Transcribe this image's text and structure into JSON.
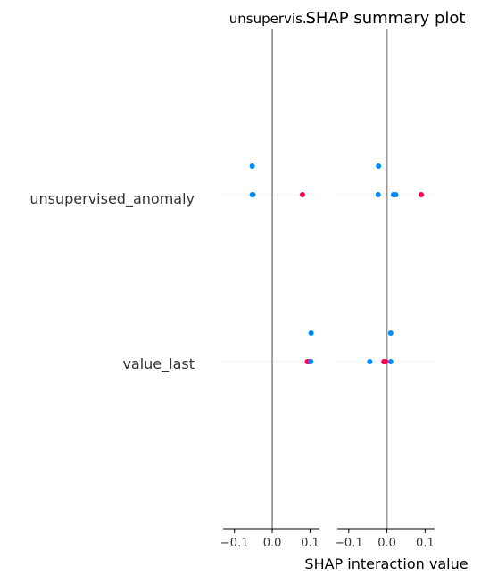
{
  "chart_data": {
    "type": "scatter",
    "title": "SHAP summary plot",
    "xlabel": "SHAP interaction value",
    "features": [
      "unsupervised_anomaly",
      "value_last"
    ],
    "xlim": [
      -0.13,
      0.125
    ],
    "xticks": [
      -0.1,
      0.0,
      0.1
    ],
    "xtick_labels": [
      "−0.1",
      "0.0",
      "0.1"
    ],
    "colors": {
      "low": "#008bfb",
      "high": "#ff0051",
      "zero_line": "#999999",
      "grid": "#cccccc",
      "text": "#333333"
    },
    "panels": [
      {
        "title": "unsupervis...",
        "points": [
          {
            "feature": "unsupervised_anomaly",
            "x": -0.053,
            "jitter": 1,
            "level": "low"
          },
          {
            "feature": "unsupervised_anomaly",
            "x": -0.053,
            "jitter": 0,
            "level": "low"
          },
          {
            "feature": "unsupervised_anomaly",
            "x": -0.051,
            "jitter": 0,
            "level": "low"
          },
          {
            "feature": "unsupervised_anomaly",
            "x": 0.08,
            "jitter": 0,
            "level": "high"
          },
          {
            "feature": "value_last",
            "x": 0.103,
            "jitter": 1,
            "level": "low"
          },
          {
            "feature": "value_last",
            "x": 0.093,
            "jitter": 0,
            "level": "high"
          },
          {
            "feature": "value_last",
            "x": 0.097,
            "jitter": 0,
            "level": "high"
          },
          {
            "feature": "value_last",
            "x": 0.102,
            "jitter": 0,
            "level": "low"
          }
        ]
      },
      {
        "title": "",
        "points": [
          {
            "feature": "unsupervised_anomaly",
            "x": -0.022,
            "jitter": 1,
            "level": "low"
          },
          {
            "feature": "unsupervised_anomaly",
            "x": -0.023,
            "jitter": 0,
            "level": "low"
          },
          {
            "feature": "unsupervised_anomaly",
            "x": 0.017,
            "jitter": 0,
            "level": "low"
          },
          {
            "feature": "unsupervised_anomaly",
            "x": 0.023,
            "jitter": 0,
            "level": "low"
          },
          {
            "feature": "unsupervised_anomaly",
            "x": 0.09,
            "jitter": 0,
            "level": "high"
          },
          {
            "feature": "value_last",
            "x": 0.01,
            "jitter": 1,
            "level": "low"
          },
          {
            "feature": "value_last",
            "x": -0.045,
            "jitter": 0,
            "level": "low"
          },
          {
            "feature": "value_last",
            "x": -0.008,
            "jitter": 0,
            "level": "high"
          },
          {
            "feature": "value_last",
            "x": -0.003,
            "jitter": 0,
            "level": "high"
          },
          {
            "feature": "value_last",
            "x": 0.01,
            "jitter": 0,
            "level": "low"
          }
        ]
      }
    ]
  }
}
